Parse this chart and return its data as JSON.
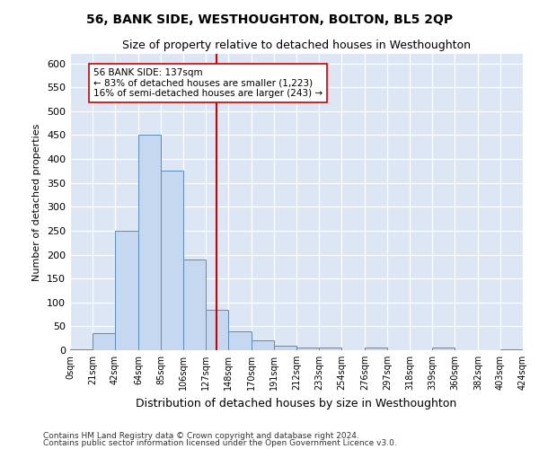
{
  "title": "56, BANK SIDE, WESTHOUGHTON, BOLTON, BL5 2QP",
  "subtitle": "Size of property relative to detached houses in Westhoughton",
  "xlabel": "Distribution of detached houses by size in Westhoughton",
  "ylabel": "Number of detached properties",
  "footnote1": "Contains HM Land Registry data © Crown copyright and database right 2024.",
  "footnote2": "Contains public sector information licensed under the Open Government Licence v3.0.",
  "bin_edges": [
    0,
    21,
    42,
    64,
    85,
    106,
    127,
    148,
    170,
    191,
    212,
    233,
    254,
    276,
    297,
    318,
    339,
    360,
    382,
    403,
    424
  ],
  "bar_heights": [
    2,
    35,
    250,
    450,
    375,
    190,
    85,
    40,
    20,
    10,
    5,
    5,
    0,
    5,
    0,
    0,
    5,
    0,
    0,
    2
  ],
  "bar_color": "#c5d8f0",
  "bar_edge_color": "#5b8db8",
  "reference_line_x": 137,
  "reference_line_color": "#cc0000",
  "annotation_text": "56 BANK SIDE: 137sqm\n← 83% of detached houses are smaller (1,223)\n16% of semi-detached houses are larger (243) →",
  "annotation_box_color": "#ffffff",
  "annotation_box_edge_color": "#cc0000",
  "ylim": [
    0,
    620
  ],
  "yticks": [
    0,
    50,
    100,
    150,
    200,
    250,
    300,
    350,
    400,
    450,
    500,
    550,
    600
  ],
  "background_color": "#dce6f5",
  "tick_labels": [
    "0sqm",
    "21sqm",
    "42sqm",
    "64sqm",
    "85sqm",
    "106sqm",
    "127sqm",
    "148sqm",
    "170sqm",
    "191sqm",
    "212sqm",
    "233sqm",
    "254sqm",
    "276sqm",
    "297sqm",
    "318sqm",
    "339sqm",
    "360sqm",
    "382sqm",
    "403sqm",
    "424sqm"
  ]
}
